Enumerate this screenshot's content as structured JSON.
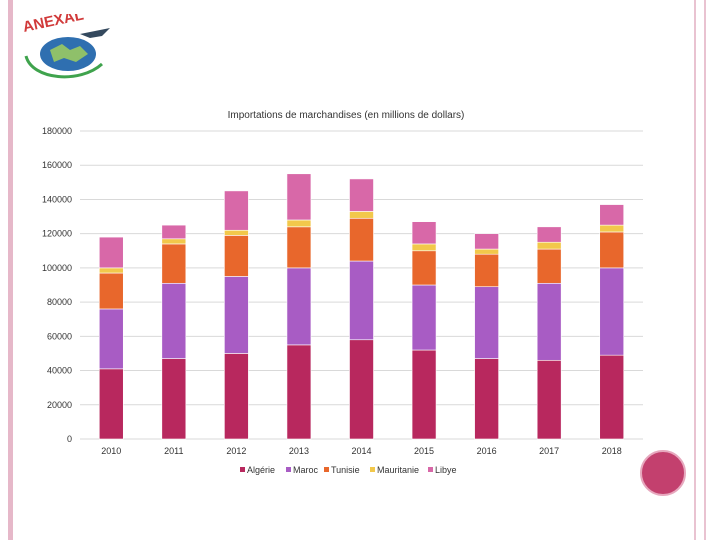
{
  "logo_text": "ANEXAL",
  "colors": {
    "Algérie": "#b8285e",
    "Maroc": "#a85cc4",
    "Tunisie": "#e8672c",
    "Mauritanie": "#f2c84b",
    "Libye": "#d868a8"
  },
  "chart_data": {
    "type": "bar",
    "stacked": true,
    "title": "Importations de marchandises (en millions de dollars)",
    "categories": [
      "2010",
      "2011",
      "2012",
      "2013",
      "2014",
      "2015",
      "2016",
      "2017",
      "2018"
    ],
    "ylim": [
      0,
      180000
    ],
    "yticks": [
      "0",
      "20000",
      "40000",
      "60000",
      "80000",
      "100000",
      "120000",
      "140000",
      "160000",
      "180000"
    ],
    "grid": true,
    "legend_position": "bottom",
    "series": [
      {
        "name": "Algérie",
        "values": [
          41000,
          47000,
          50000,
          55000,
          58000,
          52000,
          47000,
          46000,
          49000
        ]
      },
      {
        "name": "Maroc",
        "values": [
          35000,
          44000,
          45000,
          45000,
          46000,
          38000,
          42000,
          45000,
          51000
        ]
      },
      {
        "name": "Tunisie",
        "values": [
          21000,
          23000,
          24000,
          24000,
          25000,
          20000,
          19000,
          20000,
          21000
        ]
      },
      {
        "name": "Mauritanie",
        "values": [
          3000,
          3000,
          3000,
          4000,
          4000,
          4000,
          3000,
          4000,
          4000
        ]
      },
      {
        "name": "Libye",
        "values": [
          18000,
          8000,
          23000,
          27000,
          19000,
          13000,
          9000,
          9000,
          12000
        ]
      }
    ]
  }
}
